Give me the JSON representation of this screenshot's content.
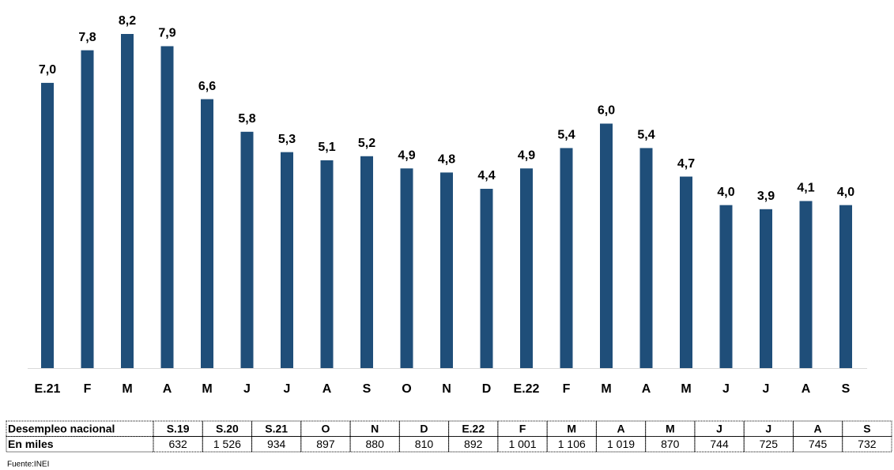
{
  "chart_data": {
    "type": "bar",
    "categories": [
      "E.21",
      "F",
      "M",
      "A",
      "M",
      "J",
      "J",
      "A",
      "S",
      "O",
      "N",
      "D",
      "E.22",
      "F",
      "M",
      "A",
      "M",
      "J",
      "J",
      "A",
      "S"
    ],
    "values": [
      7.0,
      7.8,
      8.2,
      7.9,
      6.6,
      5.8,
      5.3,
      5.1,
      5.2,
      4.9,
      4.8,
      4.4,
      4.9,
      5.4,
      6.0,
      5.4,
      4.7,
      4.0,
      3.9,
      4.1,
      4.0
    ],
    "value_labels": [
      "7,0",
      "7,8",
      "8,2",
      "7,9",
      "6,6",
      "5,8",
      "5,3",
      "5,1",
      "5,2",
      "4,9",
      "4,8",
      "4,4",
      "4,9",
      "5,4",
      "6,0",
      "5,4",
      "4,7",
      "4,0",
      "3,9",
      "4,1",
      "4,0"
    ],
    "color": "#1f4e79"
  },
  "table": {
    "rows": [
      [
        "Desempleo nacional",
        "S.19",
        "S.20",
        "S.21",
        "O",
        "N",
        "D",
        "E.22",
        "F",
        "M",
        "A",
        "M",
        "J",
        "J",
        "A",
        "S"
      ],
      [
        "En miles",
        "632",
        "1 526",
        "934",
        "897",
        "880",
        "810",
        "892",
        "1 001",
        "1 106",
        "1 019",
        "870",
        "744",
        "725",
        "745",
        "732"
      ]
    ]
  },
  "source": "Fuente:INEI"
}
